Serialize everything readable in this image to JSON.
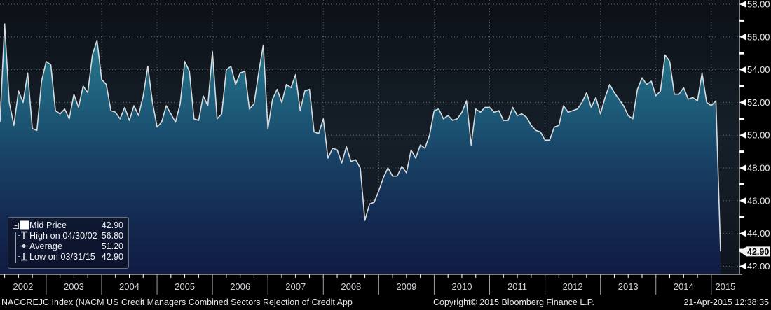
{
  "chart_data": {
    "type": "area",
    "title": "NACCREJC Index (NACM US Credit Managers Combined Sectors Rejection of Credit App",
    "series_name": "Mid Price",
    "frequency": "monthly",
    "x_start": "2002-03",
    "x_end": "2015-03",
    "values": [
      50.8,
      56.8,
      52.0,
      50.6,
      52.7,
      52.0,
      53.8,
      50.4,
      50.3,
      53.3,
      54.5,
      54.3,
      51.5,
      51.3,
      51.6,
      51.0,
      52.5,
      51.7,
      53.0,
      52.6,
      54.9,
      55.8,
      53.4,
      53.1,
      51.5,
      51.4,
      51.0,
      51.7,
      50.9,
      51.8,
      51.2,
      52.4,
      54.2,
      52.0,
      50.5,
      50.8,
      51.8,
      51.3,
      50.8,
      51.9,
      54.5,
      53.9,
      51.0,
      50.9,
      52.4,
      51.8,
      55.1,
      51.0,
      51.3,
      54.0,
      54.2,
      53.1,
      53.8,
      53.9,
      51.6,
      51.9,
      53.8,
      55.5,
      50.4,
      52.2,
      52.8,
      52.0,
      53.1,
      52.9,
      53.7,
      51.5,
      52.7,
      52.8,
      50.2,
      50.1,
      51.0,
      48.6,
      49.2,
      49.1,
      48.3,
      49.3,
      48.4,
      48.5,
      48.0,
      44.8,
      45.8,
      45.9,
      46.6,
      47.4,
      48.0,
      47.5,
      47.5,
      48.1,
      47.7,
      49.1,
      48.6,
      49.4,
      49.2,
      50.0,
      51.5,
      51.6,
      51.0,
      51.2,
      50.9,
      51.0,
      51.4,
      52.1,
      49.4,
      51.6,
      51.4,
      51.7,
      51.7,
      51.4,
      51.5,
      50.9,
      50.9,
      51.7,
      51.2,
      51.3,
      51.1,
      50.6,
      50.3,
      50.2,
      49.7,
      49.7,
      50.5,
      50.6,
      51.8,
      51.4,
      51.5,
      51.6,
      52.0,
      52.6,
      51.7,
      52.3,
      51.3,
      52.3,
      53.1,
      52.6,
      52.2,
      51.8,
      51.2,
      51.0,
      52.8,
      53.5,
      53.1,
      53.3,
      52.4,
      52.7,
      54.9,
      54.5,
      52.5,
      52.5,
      52.9,
      52.2,
      52.3,
      52.1,
      53.8,
      52.0,
      51.8,
      52.1,
      42.9
    ],
    "x_axis": {
      "years": [
        "2002",
        "2003",
        "2004",
        "2005",
        "2006",
        "2007",
        "2008",
        "2009",
        "2010",
        "2011",
        "2012",
        "2013",
        "2014",
        "2015"
      ]
    },
    "y_axis": {
      "min": 42,
      "max": 58,
      "major_tick_step": 2,
      "minor_tick_step": 1,
      "labels": [
        "42.00",
        "44.00",
        "46.00",
        "48.00",
        "50.00",
        "52.00",
        "54.00",
        "56.00",
        "58.00"
      ]
    },
    "last_price": {
      "label": "42.90",
      "value": 42.9
    },
    "stats": {
      "mid_price": 42.9,
      "high": 56.8,
      "high_date": "04/30/02",
      "average": 51.2,
      "low": 42.9,
      "low_date": "03/31/15"
    },
    "grid": true,
    "legend_position": "bottom-left",
    "colors": {
      "line": "#d7dbde",
      "area_top": "#2e93b0",
      "area_mid": "#1d5a78",
      "area_bottom": "#101b42",
      "grid": "#aab0b6",
      "axis": "#ffffff",
      "tick_label": "#e8e8e8",
      "year_label": "#cfd3d8",
      "last_price_bg": "#f2f2f2",
      "last_price_text": "#000000"
    }
  },
  "legend": {
    "rows": [
      {
        "icon": "mid-square-icon",
        "label": "Mid Price",
        "value": "42.90"
      },
      {
        "icon": "high-marker-icon",
        "label": "High on 04/30/02",
        "value": "56.80"
      },
      {
        "icon": "average-marker-icon",
        "label": "Average",
        "value": "51.20"
      },
      {
        "icon": "low-marker-icon",
        "label": "Low on 03/31/15",
        "value": "42.90"
      }
    ]
  },
  "footer": {
    "title": "NACCREJC Index (NACM US Credit Managers Combined Sectors Rejection of Credit App",
    "copyright": "Copyright© 2015 Bloomberg Finance L.P.",
    "datetime": "21-Apr-2015 12:38:35"
  }
}
